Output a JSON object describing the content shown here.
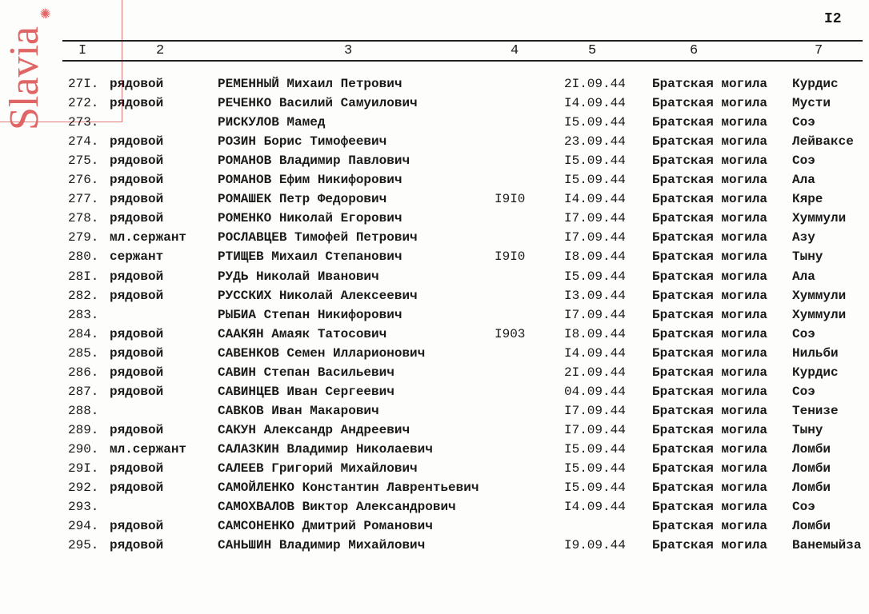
{
  "page_number": "I2",
  "stamp": {
    "text": "Slavia",
    "color": "#e06666"
  },
  "column_headers": [
    "I",
    "2",
    "3",
    "4",
    "5",
    "6",
    "7"
  ],
  "rows": [
    {
      "num": "27I.",
      "rank": "рядовой",
      "name": "РЕМЕННЫЙ Михаил Петрович",
      "year": "",
      "date": "2I.09.44",
      "grave": "Братская могила",
      "place": "Курдис"
    },
    {
      "num": "272.",
      "rank": "рядовой",
      "name": "РЕЧЕНКО Василий Самуилович",
      "year": "",
      "date": "I4.09.44",
      "grave": "Братская могила",
      "place": "Мусти"
    },
    {
      "num": "273.",
      "rank": "",
      "name": "РИСКУЛОВ Мамед",
      "year": "",
      "date": "I5.09.44",
      "grave": "Братская могила",
      "place": "Соэ"
    },
    {
      "num": "274.",
      "rank": "рядовой",
      "name": "РОЗИН Борис Тимофеевич",
      "year": "",
      "date": "23.09.44",
      "grave": "Братская могила",
      "place": "Лейваксе"
    },
    {
      "num": "275.",
      "rank": "рядовой",
      "name": "РОМАНОВ Владимир Павлович",
      "year": "",
      "date": "I5.09.44",
      "grave": "Братская могила",
      "place": "Соэ"
    },
    {
      "num": "276.",
      "rank": "рядовой",
      "name": "РОМАНОВ Ефим Никифорович",
      "year": "",
      "date": "I5.09.44",
      "grave": "Братская могила",
      "place": "Ала"
    },
    {
      "num": "277.",
      "rank": "рядовой",
      "name": "РОМАШЕК Петр Федорович",
      "year": "I9I0",
      "date": "I4.09.44",
      "grave": "Братская могила",
      "place": "Кяре"
    },
    {
      "num": "278.",
      "rank": "рядовой",
      "name": "РОМЕНКО Николай Егорович",
      "year": "",
      "date": "I7.09.44",
      "grave": "Братская могила",
      "place": "Хуммули"
    },
    {
      "num": "279.",
      "rank": "мл.сержант",
      "name": "РОСЛАВЦЕВ Тимофей Петрович",
      "year": "",
      "date": "I7.09.44",
      "grave": "Братская могила",
      "place": "Азу"
    },
    {
      "num": "280.",
      "rank": "сержант",
      "name": "РТИЩЕВ Михаил Степанович",
      "year": "I9I0",
      "date": "I8.09.44",
      "grave": "Братская могила",
      "place": "Тыну"
    },
    {
      "num": "28I.",
      "rank": "рядовой",
      "name": "РУДЬ Николай Иванович",
      "year": "",
      "date": "I5.09.44",
      "grave": "Братская могила",
      "place": "Ала"
    },
    {
      "num": "282.",
      "rank": "рядовой",
      "name": "РУССКИХ Николай Алексеевич",
      "year": "",
      "date": "I3.09.44",
      "grave": "Братская могила",
      "place": "Хуммули"
    },
    {
      "num": "283.",
      "rank": "",
      "name": "РЫБИА Степан Никифорович",
      "year": "",
      "date": "I7.09.44",
      "grave": "Братская могила",
      "place": "Хуммули"
    },
    {
      "num": "284.",
      "rank": "рядовой",
      "name": "СААКЯН Амаяк Татосович",
      "year": "I903",
      "date": "I8.09.44",
      "grave": "Братская могила",
      "place": "Соэ"
    },
    {
      "num": "285.",
      "rank": "рядовой",
      "name": "САВЕНКОВ Семен Илларионович",
      "year": "",
      "date": "I4.09.44",
      "grave": "Братская могила",
      "place": "Нильби"
    },
    {
      "num": "286.",
      "rank": "рядовой",
      "name": "САВИН Степан Васильевич",
      "year": "",
      "date": "2I.09.44",
      "grave": "Братская могила",
      "place": "Курдис"
    },
    {
      "num": "287.",
      "rank": "рядовой",
      "name": "САВИНЦЕВ Иван Сергеевич",
      "year": "",
      "date": "04.09.44",
      "grave": "Братская могила",
      "place": "Соэ"
    },
    {
      "num": "288.",
      "rank": "",
      "name": "САВКОВ Иван Макарович",
      "year": "",
      "date": "I7.09.44",
      "grave": "Братская могила",
      "place": "Тенизе"
    },
    {
      "num": "289.",
      "rank": "рядовой",
      "name": "САКУН Александр Андреевич",
      "year": "",
      "date": "I7.09.44",
      "grave": "Братская могила",
      "place": "Тыну"
    },
    {
      "num": "290.",
      "rank": "мл.сержант",
      "name": "САЛАЗКИН Владимир Николаевич",
      "year": "",
      "date": "I5.09.44",
      "grave": "Братская могила",
      "place": "Ломби"
    },
    {
      "num": "29I.",
      "rank": "рядовой",
      "name": "САЛЕЕВ Григорий Михайлович",
      "year": "",
      "date": "I5.09.44",
      "grave": "Братская могила",
      "place": "Ломби"
    },
    {
      "num": "292.",
      "rank": "рядовой",
      "name": "САМОЙЛЕНКО Константин Лаврентьевич",
      "year": "",
      "date": "I5.09.44",
      "grave": "Братская могила",
      "place": "Ломби"
    },
    {
      "num": "293.",
      "rank": "",
      "name": "САМОХВАЛОВ Виктор Александрович",
      "year": "",
      "date": "I4.09.44",
      "grave": "Братская могила",
      "place": "Соэ"
    },
    {
      "num": "294.",
      "rank": "рядовой",
      "name": "САМСОНЕНКО Дмитрий Романович",
      "year": "",
      "date": "",
      "grave": "Братская могила",
      "place": "Ломби"
    },
    {
      "num": "295.",
      "rank": "рядовой",
      "name": "САНЬШИН Владимир Михайлович",
      "year": "",
      "date": "I9.09.44",
      "grave": "Братская могила",
      "place": "Ванемыйза"
    }
  ]
}
